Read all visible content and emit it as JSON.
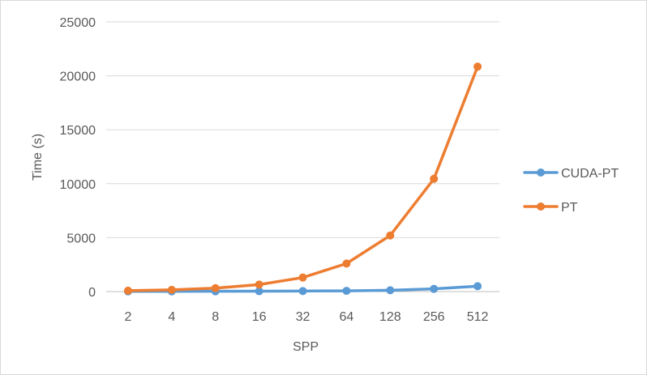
{
  "chart_data": {
    "type": "line",
    "title": "",
    "xlabel": "SPP",
    "ylabel": "Time (s)",
    "categories": [
      "2",
      "4",
      "8",
      "16",
      "32",
      "64",
      "128",
      "256",
      "512"
    ],
    "ylim": [
      0,
      25000
    ],
    "yticks": [
      0,
      5000,
      10000,
      15000,
      20000,
      25000
    ],
    "grid": "horizontal",
    "legend": "right",
    "series": [
      {
        "name": "CUDA-PT",
        "color": "#5b9bd5",
        "values": [
          15,
          20,
          25,
          35,
          50,
          70,
          120,
          250,
          500
        ]
      },
      {
        "name": "PT",
        "color": "#ed7d31",
        "values": [
          80,
          160,
          320,
          650,
          1300,
          2600,
          5200,
          10450,
          20850
        ]
      }
    ]
  }
}
